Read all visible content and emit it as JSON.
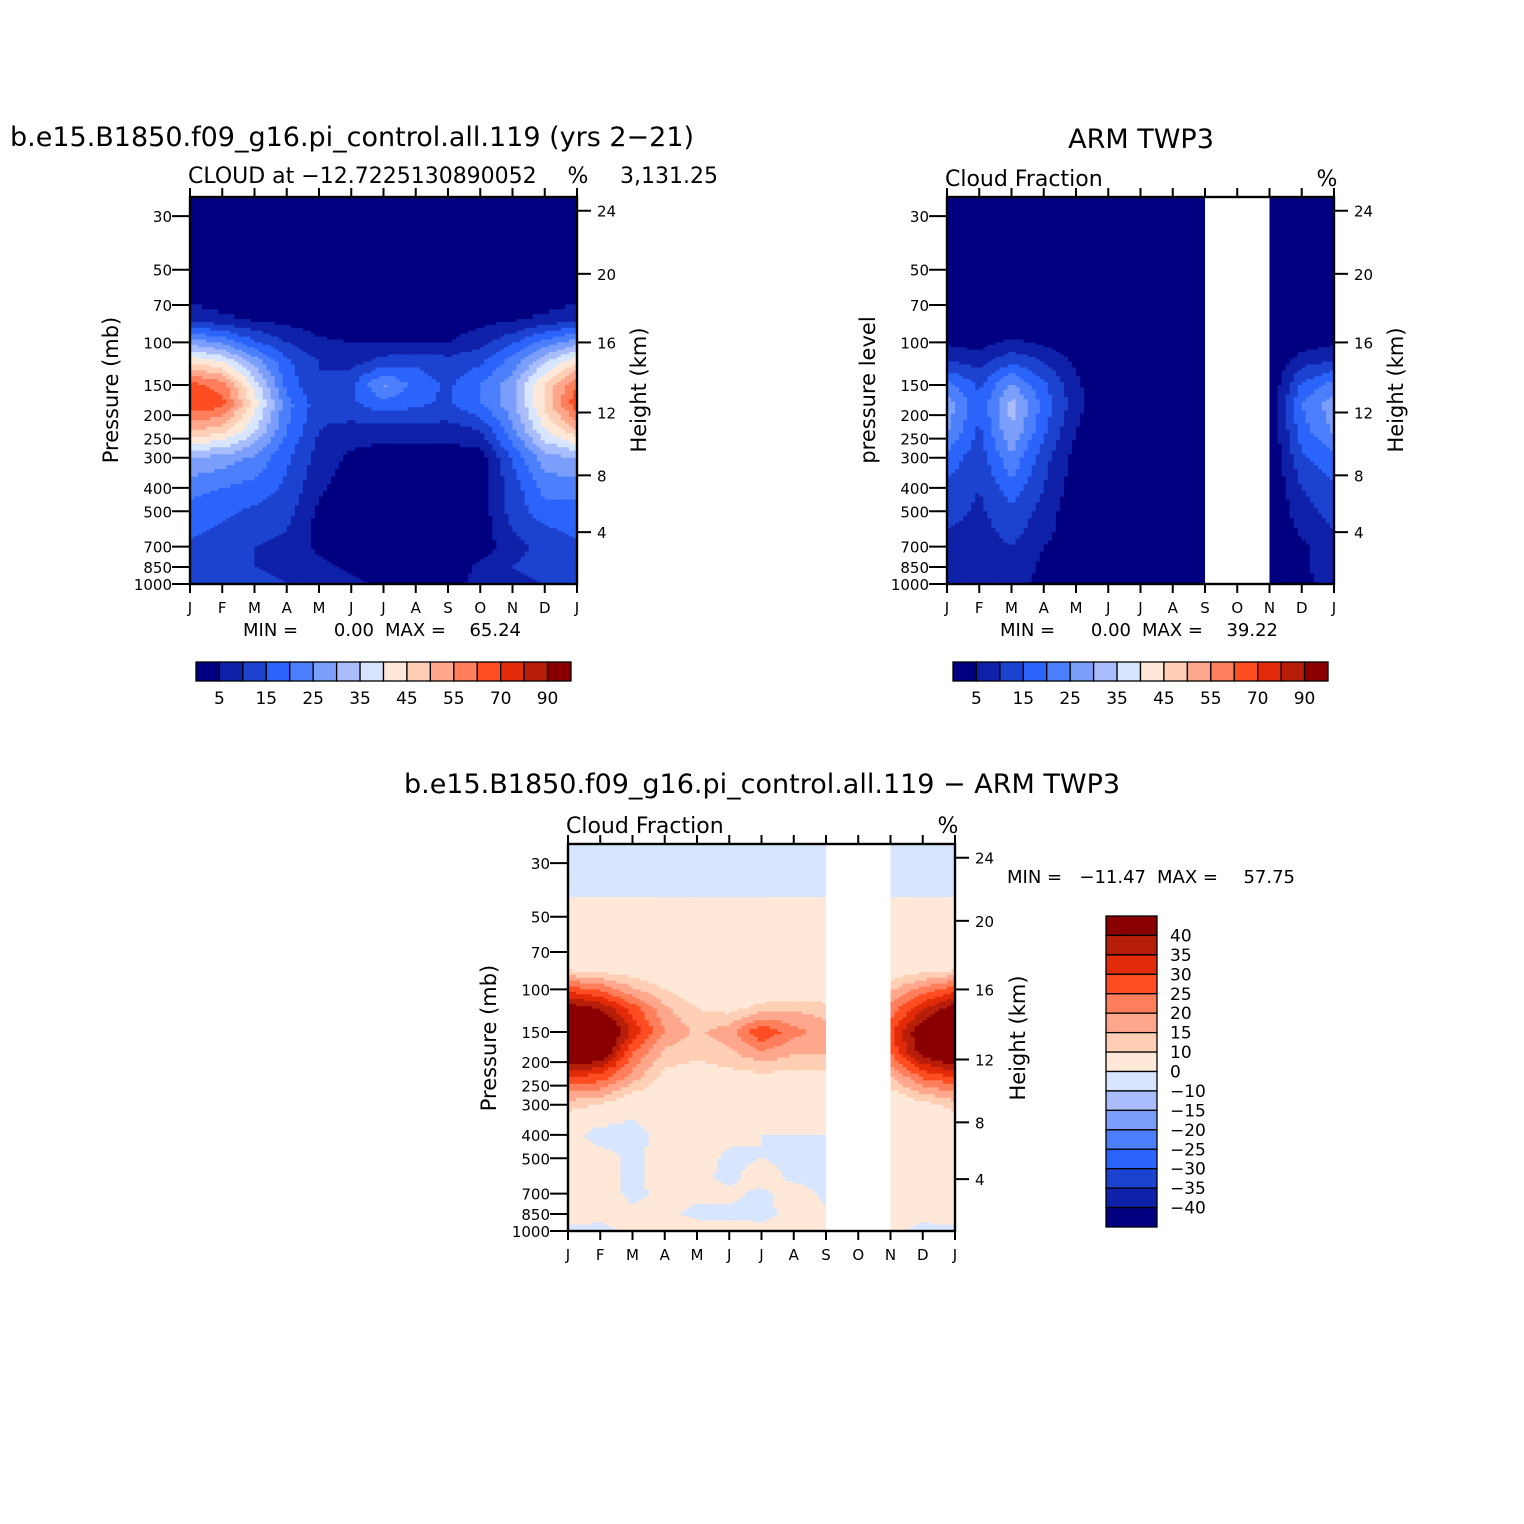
{
  "chart_data": [
    {
      "type": "heatmap",
      "id": "model",
      "title": "b.e15.B1850.f09_g16.pi_control.all.119 (yrs 2−21)",
      "subtitle_left": "CLOUD at −12.7225130890052",
      "subtitle_overlap": "3,131.25",
      "subtitle_right": "%",
      "ylabel": "Pressure (mb)",
      "ylabel_right": "Height (km)",
      "x_labels": [
        "J",
        "F",
        "M",
        "A",
        "M",
        "J",
        "J",
        "A",
        "S",
        "O",
        "N",
        "D",
        "J"
      ],
      "y_ticks": [
        "30",
        "50",
        "70",
        "100",
        "150",
        "200",
        "250",
        "300",
        "400",
        "500",
        "700",
        "850",
        "1000"
      ],
      "y_ticks_right": [
        "24",
        "20",
        "16",
        "12",
        "8",
        "4"
      ],
      "ylim": [
        1000,
        25
      ],
      "stats": {
        "min_label": "MIN =",
        "min": "0.00",
        "max_label": "MAX =",
        "max": "65.24"
      },
      "colorbar_labels": [
        "5",
        "15",
        "25",
        "35",
        "45",
        "55",
        "70",
        "90"
      ],
      "levels": [
        5,
        10,
        15,
        20,
        25,
        30,
        35,
        40,
        45,
        50,
        55,
        60,
        70,
        80,
        90
      ],
      "missing_months": [],
      "values": [
        [
          0,
          0,
          0,
          0,
          0,
          0,
          0,
          0,
          0,
          0,
          0,
          0,
          0
        ],
        [
          0,
          0,
          0,
          0,
          0,
          0,
          0,
          0,
          0,
          0,
          0,
          0,
          0
        ],
        [
          0,
          0,
          0,
          0,
          0,
          0,
          0,
          0,
          0,
          0,
          0,
          0,
          0
        ],
        [
          8,
          6,
          4,
          3,
          2,
          2,
          2,
          2,
          2,
          3,
          4,
          6,
          8
        ],
        [
          28,
          24,
          16,
          10,
          6,
          5,
          5,
          5,
          5,
          8,
          14,
          22,
          28
        ],
        [
          44,
          40,
          28,
          16,
          10,
          8,
          12,
          14,
          12,
          14,
          22,
          34,
          44
        ],
        [
          62,
          58,
          38,
          18,
          10,
          14,
          26,
          18,
          14,
          20,
          28,
          46,
          60
        ],
        [
          64,
          62,
          42,
          22,
          12,
          14,
          18,
          16,
          14,
          20,
          28,
          46,
          64
        ],
        [
          50,
          48,
          36,
          20,
          10,
          8,
          8,
          8,
          8,
          10,
          24,
          40,
          50
        ],
        [
          30,
          28,
          24,
          16,
          8,
          4,
          2,
          2,
          2,
          2,
          16,
          28,
          30
        ],
        [
          22,
          20,
          18,
          14,
          6,
          2,
          0,
          0,
          0,
          2,
          12,
          22,
          22
        ],
        [
          18,
          16,
          14,
          12,
          4,
          1,
          0,
          0,
          0,
          2,
          12,
          18,
          18
        ],
        [
          16,
          14,
          12,
          10,
          3,
          0,
          0,
          0,
          0,
          2,
          10,
          14,
          16
        ],
        [
          14,
          12,
          10,
          8,
          4,
          2,
          0,
          0,
          0,
          2,
          8,
          12,
          14
        ],
        [
          12,
          10,
          10,
          8,
          6,
          4,
          2,
          2,
          2,
          6,
          10,
          12,
          12
        ],
        [
          10,
          10,
          12,
          10,
          8,
          6,
          4,
          4,
          4,
          6,
          8,
          10,
          10
        ]
      ]
    },
    {
      "type": "heatmap",
      "id": "obs",
      "title": "ARM TWP3",
      "subtitle_left": "Cloud Fraction",
      "subtitle_right": "%",
      "ylabel": "pressure level",
      "ylabel_right": "Height (km)",
      "x_labels": [
        "J",
        "F",
        "M",
        "A",
        "M",
        "J",
        "J",
        "A",
        "S",
        "O",
        "N",
        "D",
        "J"
      ],
      "y_ticks": [
        "30",
        "50",
        "70",
        "100",
        "150",
        "200",
        "250",
        "300",
        "400",
        "500",
        "700",
        "850",
        "1000"
      ],
      "y_ticks_right": [
        "24",
        "20",
        "16",
        "12",
        "8",
        "4"
      ],
      "ylim": [
        1000,
        25
      ],
      "stats": {
        "min_label": "MIN =",
        "min": "0.00",
        "max_label": "MAX =",
        "max": "39.22"
      },
      "colorbar_labels": [
        "5",
        "15",
        "25",
        "35",
        "45",
        "55",
        "70",
        "90"
      ],
      "levels": [
        5,
        10,
        15,
        20,
        25,
        30,
        35,
        40,
        45,
        50,
        55,
        60,
        70,
        80,
        90
      ],
      "missing_months": [
        "S-O",
        "O-N"
      ],
      "values": [
        [
          0,
          0,
          0,
          0,
          0,
          0,
          0,
          0,
          0,
          0,
          0,
          0,
          0
        ],
        [
          0,
          0,
          0,
          0,
          0,
          0,
          0,
          0,
          0,
          0,
          0,
          0,
          0
        ],
        [
          0,
          0,
          0,
          0,
          0,
          0,
          0,
          0,
          0,
          0,
          0,
          0,
          0
        ],
        [
          0,
          0,
          0,
          0,
          0,
          0,
          0,
          0,
          0,
          0,
          0,
          0,
          0
        ],
        [
          4,
          3,
          6,
          4,
          1,
          0,
          0,
          0,
          0,
          0,
          0,
          2,
          4
        ],
        [
          10,
          8,
          14,
          10,
          4,
          0,
          0,
          0,
          0,
          0,
          0,
          8,
          10
        ],
        [
          22,
          14,
          26,
          16,
          6,
          0,
          0,
          0,
          0,
          0,
          0,
          16,
          22
        ],
        [
          28,
          16,
          32,
          18,
          7,
          0,
          0,
          0,
          0,
          0,
          0,
          20,
          28
        ],
        [
          26,
          14,
          30,
          16,
          5,
          0,
          0,
          0,
          0,
          0,
          0,
          18,
          26
        ],
        [
          18,
          12,
          24,
          12,
          3,
          0,
          0,
          0,
          0,
          0,
          0,
          14,
          18
        ],
        [
          14,
          10,
          18,
          10,
          2,
          0,
          0,
          0,
          0,
          0,
          0,
          10,
          14
        ],
        [
          12,
          9,
          14,
          8,
          1,
          0,
          0,
          0,
          0,
          0,
          0,
          8,
          12
        ],
        [
          10,
          8,
          12,
          7,
          1,
          0,
          0,
          0,
          0,
          0,
          0,
          6,
          10
        ],
        [
          8,
          7,
          10,
          5,
          2,
          1,
          0,
          0,
          0,
          0,
          0,
          4,
          8
        ],
        [
          8,
          6,
          8,
          4,
          3,
          2,
          0,
          0,
          0,
          0,
          0,
          4,
          8
        ],
        [
          6,
          6,
          6,
          4,
          2,
          1,
          0,
          0,
          0,
          0,
          0,
          4,
          6
        ]
      ]
    },
    {
      "type": "heatmap",
      "id": "diff",
      "title": "b.e15.B1850.f09_g16.pi_control.all.119 − ARM TWP3",
      "subtitle_left": "Cloud Fraction",
      "subtitle_right": "%",
      "ylabel": "Pressure (mb)",
      "ylabel_right": "Height (km)",
      "x_labels": [
        "J",
        "F",
        "M",
        "A",
        "M",
        "J",
        "J",
        "A",
        "S",
        "O",
        "N",
        "D",
        "J"
      ],
      "y_ticks": [
        "30",
        "50",
        "70",
        "100",
        "150",
        "200",
        "250",
        "300",
        "400",
        "500",
        "700",
        "850",
        "1000"
      ],
      "y_ticks_right": [
        "24",
        "20",
        "16",
        "12",
        "8",
        "4"
      ],
      "ylim": [
        1000,
        25
      ],
      "stats": {
        "min_label": "MIN =",
        "min": "−11.47",
        "max_label": "MAX =",
        "max": "57.75"
      },
      "colorbar_labels": [
        "40",
        "35",
        "30",
        "25",
        "20",
        "15",
        "10",
        "0",
        "−10",
        "−15",
        "−20",
        "−25",
        "−30",
        "−35",
        "−40"
      ],
      "levels": [
        -40,
        -35,
        -30,
        -25,
        -20,
        -15,
        -10,
        0,
        10,
        15,
        20,
        25,
        30,
        35,
        40
      ],
      "missing_months": [
        "S-O",
        "O-N"
      ],
      "values": [
        [
          -2,
          -2,
          -2,
          -2,
          -2,
          -2,
          -2,
          -2,
          -2,
          -2,
          -2,
          -2,
          -2
        ],
        [
          -2,
          -2,
          -2,
          -2,
          -2,
          -2,
          -2,
          -2,
          -2,
          -2,
          -2,
          -2,
          -2
        ],
        [
          4,
          4,
          4,
          4,
          4,
          4,
          4,
          4,
          4,
          4,
          4,
          4,
          4
        ],
        [
          6,
          5,
          4,
          3,
          2,
          2,
          2,
          2,
          2,
          3,
          4,
          5,
          6
        ],
        [
          28,
          24,
          16,
          10,
          6,
          5,
          5,
          5,
          5,
          8,
          14,
          22,
          28
        ],
        [
          44,
          40,
          28,
          16,
          10,
          8,
          12,
          14,
          12,
          14,
          22,
          34,
          44
        ],
        [
          58,
          52,
          34,
          20,
          14,
          18,
          30,
          22,
          18,
          20,
          28,
          46,
          58
        ],
        [
          52,
          48,
          26,
          14,
          12,
          14,
          20,
          16,
          16,
          18,
          26,
          44,
          52
        ],
        [
          30,
          28,
          18,
          8,
          6,
          8,
          8,
          8,
          8,
          10,
          14,
          26,
          30
        ],
        [
          12,
          10,
          4,
          4,
          6,
          4,
          2,
          2,
          2,
          2,
          4,
          8,
          12
        ],
        [
          4,
          -4,
          -4,
          4,
          4,
          2,
          0,
          0,
          0,
          2,
          4,
          4,
          4
        ],
        [
          6,
          4,
          -2,
          4,
          4,
          -2,
          0,
          -2,
          -2,
          2,
          2,
          4,
          6
        ],
        [
          6,
          4,
          -2,
          4,
          2,
          -2,
          4,
          -2,
          -2,
          2,
          2,
          4,
          6
        ],
        [
          6,
          4,
          -2,
          2,
          2,
          2,
          -2,
          4,
          -2,
          2,
          2,
          4,
          6
        ],
        [
          4,
          2,
          2,
          2,
          -2,
          -2,
          -2,
          2,
          2,
          2,
          2,
          2,
          4
        ],
        [
          -2,
          -2,
          2,
          2,
          4,
          4,
          2,
          2,
          2,
          2,
          2,
          -2,
          -2
        ]
      ]
    }
  ],
  "colors": {
    "palette": [
      "#000080",
      "#0e21a8",
      "#1c42d0",
      "#2b64fb",
      "#4c7ffb",
      "#7b9efb",
      "#a9bdfc",
      "#d7e6fe",
      "#ffe8d8",
      "#ffcfb5",
      "#ffa78c",
      "#ff7e5b",
      "#ff4d22",
      "#e22b09",
      "#b61e0a",
      "#8a0000"
    ]
  }
}
